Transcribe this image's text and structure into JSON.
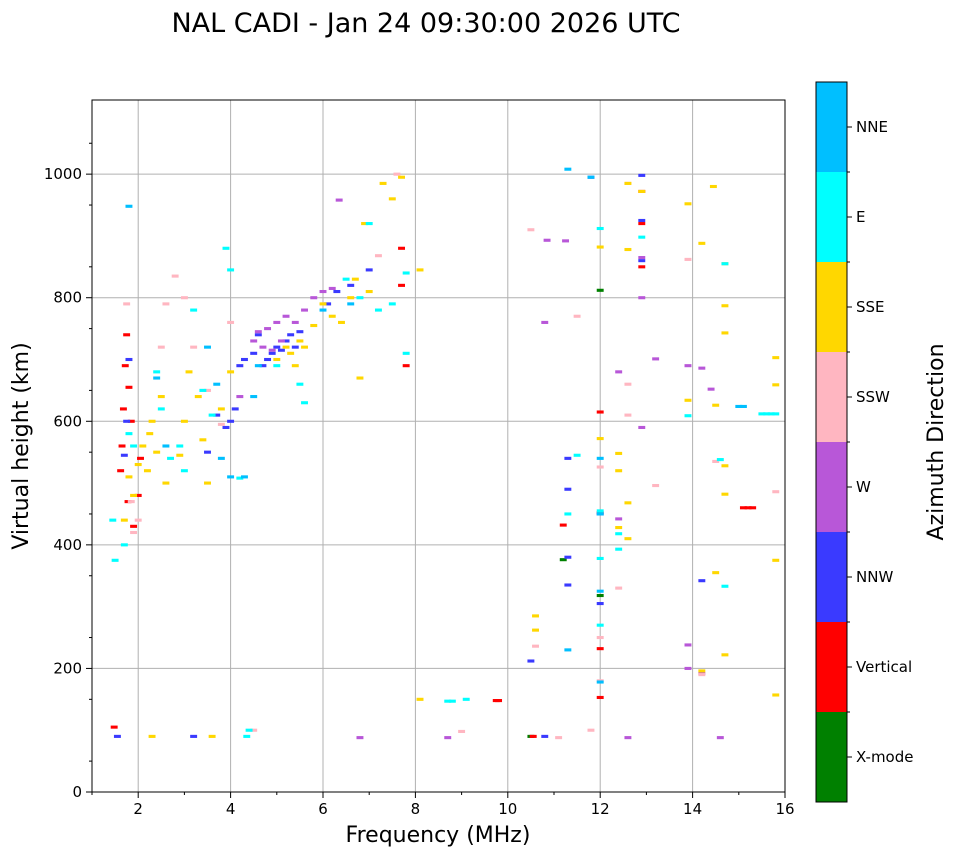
{
  "chart_data": {
    "type": "scatter",
    "title": "NAL CADI - Jan 24 09:30:00 2026 UTC",
    "xlabel": "Frequency (MHz)",
    "ylabel": "Virtual height (km)",
    "xlim": [
      1,
      16
    ],
    "ylim": [
      0,
      1120
    ],
    "xticks": [
      2,
      4,
      6,
      8,
      10,
      12,
      14,
      16
    ],
    "yticks": [
      0,
      200,
      400,
      600,
      800,
      1000
    ],
    "grid": true,
    "colorbar": {
      "label": "Azimuth Direction",
      "categories": [
        {
          "name": "X-mode",
          "color": "#008000"
        },
        {
          "name": "Vertical",
          "color": "#ff0000"
        },
        {
          "name": "NNW",
          "color": "#3a3aff"
        },
        {
          "name": "W",
          "color": "#b857d8"
        },
        {
          "name": "SSW",
          "color": "#ffb6c1"
        },
        {
          "name": "SSE",
          "color": "#ffd700"
        },
        {
          "name": "E",
          "color": "#00ffff"
        },
        {
          "name": "NNE",
          "color": "#00bfff"
        }
      ]
    },
    "bin_width_mhz": 0.05,
    "bin_height_km": 5,
    "series": [
      {
        "name": "X-mode",
        "points": [
          [
            12.0,
            812
          ],
          [
            12.0,
            318
          ],
          [
            11.2,
            376
          ],
          [
            10.5,
            90
          ]
        ]
      },
      {
        "name": "Vertical",
        "points": [
          [
            1.48,
            105
          ],
          [
            1.62,
            520
          ],
          [
            1.65,
            560
          ],
          [
            1.68,
            620
          ],
          [
            1.72,
            690
          ],
          [
            1.75,
            740
          ],
          [
            1.78,
            470
          ],
          [
            1.8,
            655
          ],
          [
            1.85,
            600
          ],
          [
            1.9,
            430
          ],
          [
            2.0,
            480
          ],
          [
            2.05,
            540
          ],
          [
            7.7,
            820
          ],
          [
            7.7,
            880
          ],
          [
            7.8,
            690
          ],
          [
            9.75,
            148
          ],
          [
            9.8,
            148
          ],
          [
            10.55,
            90
          ],
          [
            11.2,
            432
          ],
          [
            12.0,
            232
          ],
          [
            12.0,
            153
          ],
          [
            12.0,
            615
          ],
          [
            12.0,
            452
          ],
          [
            12.9,
            850
          ],
          [
            12.9,
            920
          ],
          [
            12.9,
            972
          ],
          [
            15.1,
            460
          ],
          [
            15.2,
            460
          ],
          [
            15.3,
            460
          ]
        ]
      },
      {
        "name": "NNW",
        "points": [
          [
            1.55,
            90
          ],
          [
            1.7,
            545
          ],
          [
            1.75,
            600
          ],
          [
            1.8,
            700
          ],
          [
            3.2,
            90
          ],
          [
            3.5,
            550
          ],
          [
            3.7,
            610
          ],
          [
            3.9,
            590
          ],
          [
            4.0,
            600
          ],
          [
            4.1,
            620
          ],
          [
            4.2,
            690
          ],
          [
            4.3,
            700
          ],
          [
            4.5,
            710
          ],
          [
            4.6,
            740
          ],
          [
            4.7,
            690
          ],
          [
            4.8,
            700
          ],
          [
            4.9,
            710
          ],
          [
            5.0,
            720
          ],
          [
            5.1,
            715
          ],
          [
            5.2,
            730
          ],
          [
            5.3,
            740
          ],
          [
            5.4,
            720
          ],
          [
            5.5,
            745
          ],
          [
            6.1,
            790
          ],
          [
            6.3,
            810
          ],
          [
            6.6,
            820
          ],
          [
            7.0,
            845
          ],
          [
            10.5,
            212
          ],
          [
            10.8,
            90
          ],
          [
            11.3,
            490
          ],
          [
            11.3,
            540
          ],
          [
            11.3,
            380
          ],
          [
            11.3,
            335
          ],
          [
            11.8,
            995
          ],
          [
            12.0,
            450
          ],
          [
            12.0,
            305
          ],
          [
            12.9,
            998
          ],
          [
            12.9,
            925
          ],
          [
            12.9,
            860
          ],
          [
            14.2,
            342
          ]
        ]
      },
      {
        "name": "W",
        "points": [
          [
            4.2,
            640
          ],
          [
            4.5,
            730
          ],
          [
            4.6,
            745
          ],
          [
            4.7,
            720
          ],
          [
            4.8,
            750
          ],
          [
            4.9,
            715
          ],
          [
            5.0,
            760
          ],
          [
            5.1,
            730
          ],
          [
            5.2,
            770
          ],
          [
            5.4,
            760
          ],
          [
            5.6,
            780
          ],
          [
            5.8,
            800
          ],
          [
            6.0,
            810
          ],
          [
            6.2,
            815
          ],
          [
            6.35,
            958
          ],
          [
            6.8,
            88
          ],
          [
            8.7,
            88
          ],
          [
            10.8,
            760
          ],
          [
            10.85,
            893
          ],
          [
            11.25,
            892
          ],
          [
            12.4,
            680
          ],
          [
            12.4,
            442
          ],
          [
            12.6,
            88
          ],
          [
            12.9,
            800
          ],
          [
            12.9,
            590
          ],
          [
            12.9,
            865
          ],
          [
            13.2,
            701
          ],
          [
            13.9,
            238
          ],
          [
            13.9,
            200
          ],
          [
            13.9,
            690
          ],
          [
            14.2,
            686
          ],
          [
            14.2,
            192
          ],
          [
            14.4,
            652
          ],
          [
            14.6,
            88
          ]
        ]
      },
      {
        "name": "SSW",
        "points": [
          [
            1.75,
            790
          ],
          [
            1.85,
            470
          ],
          [
            1.9,
            420
          ],
          [
            2.0,
            440
          ],
          [
            2.5,
            720
          ],
          [
            2.6,
            790
          ],
          [
            2.8,
            835
          ],
          [
            3.0,
            800
          ],
          [
            3.2,
            720
          ],
          [
            3.5,
            650
          ],
          [
            3.8,
            595
          ],
          [
            4.0,
            760
          ],
          [
            4.5,
            100
          ],
          [
            7.2,
            868
          ],
          [
            7.6,
            1000
          ],
          [
            9.0,
            98
          ],
          [
            10.5,
            910
          ],
          [
            10.6,
            236
          ],
          [
            11.1,
            88
          ],
          [
            11.5,
            770
          ],
          [
            11.8,
            100
          ],
          [
            12.0,
            250
          ],
          [
            12.0,
            526
          ],
          [
            12.0,
            180
          ],
          [
            12.4,
            330
          ],
          [
            12.6,
            985
          ],
          [
            12.6,
            660
          ],
          [
            12.6,
            610
          ],
          [
            13.2,
            496
          ],
          [
            13.9,
            862
          ],
          [
            14.2,
            190
          ],
          [
            14.5,
            535
          ],
          [
            15.8,
            486
          ]
        ]
      },
      {
        "name": "SSE",
        "points": [
          [
            1.7,
            440
          ],
          [
            1.8,
            510
          ],
          [
            1.9,
            480
          ],
          [
            2.0,
            530
          ],
          [
            2.1,
            560
          ],
          [
            2.2,
            520
          ],
          [
            2.25,
            580
          ],
          [
            2.3,
            600
          ],
          [
            2.4,
            550
          ],
          [
            2.5,
            640
          ],
          [
            2.6,
            500
          ],
          [
            2.3,
            90
          ],
          [
            2.9,
            545
          ],
          [
            3.0,
            600
          ],
          [
            3.1,
            680
          ],
          [
            3.3,
            640
          ],
          [
            3.4,
            570
          ],
          [
            3.5,
            500
          ],
          [
            3.6,
            90
          ],
          [
            3.8,
            620
          ],
          [
            4.0,
            680
          ],
          [
            5.0,
            700
          ],
          [
            5.2,
            720
          ],
          [
            5.3,
            710
          ],
          [
            5.4,
            690
          ],
          [
            5.5,
            730
          ],
          [
            5.6,
            720
          ],
          [
            5.8,
            755
          ],
          [
            6.0,
            790
          ],
          [
            6.2,
            770
          ],
          [
            6.4,
            760
          ],
          [
            6.6,
            800
          ],
          [
            6.7,
            830
          ],
          [
            6.8,
            670
          ],
          [
            6.9,
            920
          ],
          [
            7.0,
            810
          ],
          [
            7.3,
            985
          ],
          [
            7.5,
            960
          ],
          [
            7.7,
            995
          ],
          [
            8.1,
            845
          ],
          [
            8.1,
            150
          ],
          [
            10.6,
            285
          ],
          [
            10.6,
            262
          ],
          [
            12.0,
            882
          ],
          [
            12.0,
            572
          ],
          [
            12.4,
            548
          ],
          [
            12.4,
            520
          ],
          [
            12.4,
            428
          ],
          [
            12.6,
            985
          ],
          [
            12.6,
            878
          ],
          [
            12.6,
            468
          ],
          [
            12.6,
            410
          ],
          [
            12.9,
            972
          ],
          [
            13.9,
            952
          ],
          [
            13.9,
            634
          ],
          [
            14.2,
            888
          ],
          [
            14.2,
            196
          ],
          [
            14.45,
            980
          ],
          [
            14.5,
            626
          ],
          [
            14.5,
            355
          ],
          [
            14.7,
            855
          ],
          [
            14.7,
            787
          ],
          [
            14.7,
            743
          ],
          [
            14.7,
            528
          ],
          [
            14.7,
            482
          ],
          [
            14.7,
            222
          ],
          [
            15.8,
            703
          ],
          [
            15.8,
            659
          ],
          [
            15.8,
            375
          ],
          [
            15.8,
            157
          ]
        ]
      },
      {
        "name": "E",
        "points": [
          [
            1.45,
            440
          ],
          [
            1.5,
            375
          ],
          [
            1.7,
            400
          ],
          [
            1.8,
            580
          ],
          [
            1.9,
            560
          ],
          [
            2.4,
            680
          ],
          [
            2.5,
            620
          ],
          [
            2.7,
            540
          ],
          [
            2.9,
            560
          ],
          [
            3.0,
            520
          ],
          [
            3.2,
            780
          ],
          [
            3.4,
            650
          ],
          [
            3.6,
            610
          ],
          [
            3.9,
            880
          ],
          [
            4.0,
            845
          ],
          [
            4.2,
            508
          ],
          [
            4.35,
            90
          ],
          [
            4.4,
            100
          ],
          [
            5.0,
            690
          ],
          [
            5.5,
            660
          ],
          [
            5.6,
            630
          ],
          [
            6.5,
            830
          ],
          [
            6.8,
            800
          ],
          [
            7.0,
            920
          ],
          [
            7.2,
            780
          ],
          [
            7.5,
            790
          ],
          [
            7.8,
            840
          ],
          [
            7.8,
            710
          ],
          [
            8.7,
            147
          ],
          [
            8.8,
            147
          ],
          [
            9.1,
            150
          ],
          [
            11.3,
            450
          ],
          [
            11.5,
            545
          ],
          [
            12.0,
            912
          ],
          [
            12.0,
            455
          ],
          [
            12.0,
            378
          ],
          [
            12.0,
            270
          ],
          [
            12.4,
            418
          ],
          [
            12.4,
            393
          ],
          [
            12.9,
            898
          ],
          [
            13.9,
            609
          ],
          [
            14.6,
            538
          ],
          [
            14.7,
            855
          ],
          [
            14.7,
            333
          ],
          [
            15.5,
            612
          ],
          [
            15.6,
            612
          ],
          [
            15.7,
            612
          ],
          [
            15.8,
            612
          ]
        ]
      },
      {
        "name": "NNE",
        "points": [
          [
            1.8,
            948
          ],
          [
            2.4,
            670
          ],
          [
            2.6,
            560
          ],
          [
            3.5,
            720
          ],
          [
            3.7,
            660
          ],
          [
            3.8,
            540
          ],
          [
            4.0,
            510
          ],
          [
            4.3,
            510
          ],
          [
            4.5,
            640
          ],
          [
            4.6,
            690
          ],
          [
            6.0,
            780
          ],
          [
            6.6,
            790
          ],
          [
            11.3,
            1008
          ],
          [
            11.3,
            230
          ],
          [
            11.8,
            995
          ],
          [
            12.0,
            540
          ],
          [
            12.0,
            450
          ],
          [
            12.0,
            325
          ],
          [
            12.0,
            178
          ],
          [
            15.0,
            624
          ],
          [
            15.1,
            624
          ]
        ]
      }
    ]
  }
}
